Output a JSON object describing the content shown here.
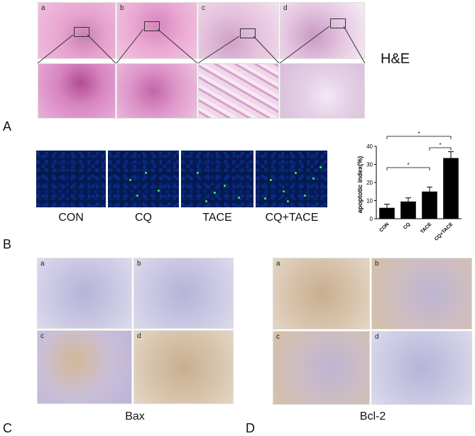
{
  "panelA": {
    "letter": "A",
    "label": "H&E",
    "top_labels": [
      "a",
      "b",
      "c",
      "d"
    ]
  },
  "panelB": {
    "letter": "B",
    "captions": [
      "CON",
      "CQ",
      "TACE",
      "CQ+TACE"
    ]
  },
  "panelC": {
    "letter": "C",
    "label": "Bax",
    "labels": [
      "a",
      "b",
      "c",
      "d"
    ]
  },
  "panelD": {
    "letter": "D",
    "label": "Bcl-2",
    "labels": [
      "a",
      "b",
      "c",
      "d"
    ]
  },
  "chart_data": {
    "type": "bar",
    "ylabel": "apoptotic index(%)",
    "categories": [
      "CON",
      "CQ",
      "TACE",
      "CQ+TACE"
    ],
    "values": [
      6,
      9.5,
      15,
      33.5
    ],
    "errors": [
      2,
      2,
      2.5,
      3.5
    ],
    "ylim": [
      0,
      40
    ],
    "yticks": [
      0,
      10,
      20,
      30,
      40
    ],
    "significance": [
      {
        "from": "CON",
        "to": "TACE",
        "label": "*"
      },
      {
        "from": "CON",
        "to": "CQ+TACE",
        "label": "*"
      },
      {
        "from": "TACE",
        "to": "CQ+TACE",
        "label": "*"
      }
    ],
    "colors": {
      "bar": "#000000"
    }
  }
}
